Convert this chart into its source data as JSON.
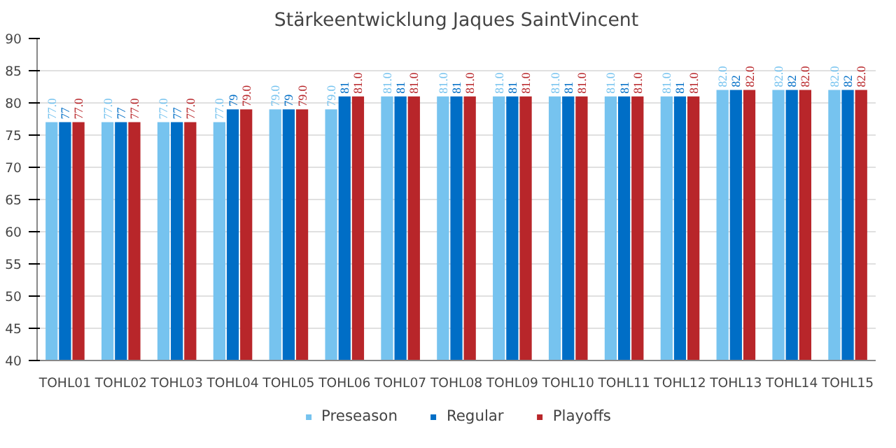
{
  "chart_data": {
    "type": "bar",
    "title": "Stärkeentwicklung Jaques SaintVincent",
    "categories": [
      "TOHL01",
      "TOHL02",
      "TOHL03",
      "TOHL04",
      "TOHL05",
      "TOHL06",
      "TOHL07",
      "TOHL08",
      "TOHL09",
      "TOHL10",
      "TOHL11",
      "TOHL12",
      "TOHL13",
      "TOHL14",
      "TOHL15"
    ],
    "series": [
      {
        "name": "Preseason",
        "color": "#76c3ef",
        "values": [
          77,
          77,
          77,
          77,
          79,
          79,
          81,
          81,
          81,
          81,
          81,
          81,
          82,
          82,
          82
        ],
        "value_labels": [
          "77.0",
          "77.0",
          "77.0",
          "77.0",
          "79.0",
          "79.0",
          "81.0",
          "81.0",
          "81.0",
          "81.0",
          "81.0",
          "81.0",
          "82.0",
          "82.0",
          "82.0"
        ]
      },
      {
        "name": "Regular",
        "color": "#006ec6",
        "values": [
          77,
          77,
          77,
          79,
          79,
          81,
          81,
          81,
          81,
          81,
          81,
          81,
          82,
          82,
          82
        ],
        "value_labels": [
          "77",
          "77",
          "77",
          "79",
          "79",
          "81",
          "81",
          "81",
          "81",
          "81",
          "81",
          "81",
          "82",
          "82",
          "82"
        ]
      },
      {
        "name": "Playoffs",
        "color": "#b8262a",
        "values": [
          77,
          77,
          77,
          79,
          79,
          81,
          81,
          81,
          81,
          81,
          81,
          81,
          82,
          82,
          82
        ],
        "value_labels": [
          "77.0",
          "77.0",
          "77.0",
          "79.0",
          "79.0",
          "81.0",
          "81.0",
          "81.0",
          "81.0",
          "81.0",
          "81.0",
          "81.0",
          "82.0",
          "82.0",
          "82.0"
        ]
      }
    ],
    "ylim": [
      40,
      90
    ],
    "yticks": [
      40,
      45,
      50,
      55,
      60,
      65,
      70,
      75,
      80,
      85,
      90
    ],
    "grid": "y",
    "legend": "bottom"
  }
}
